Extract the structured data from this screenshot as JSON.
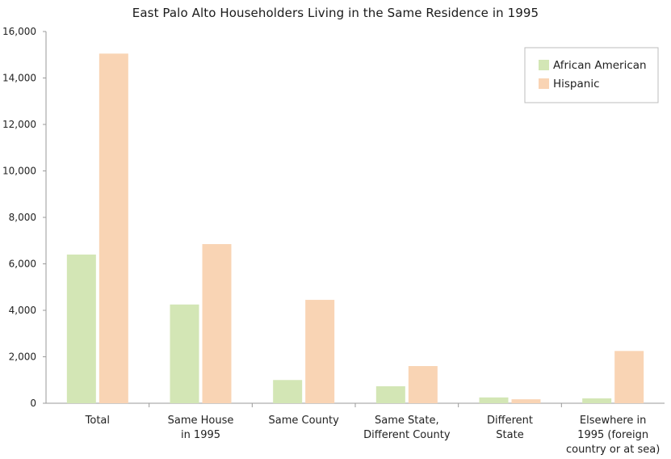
{
  "chart_data": {
    "type": "bar",
    "title": "East Palo Alto Householders Living in the Same Residence in 1995",
    "categories": [
      [
        "Total"
      ],
      [
        "Same House",
        "in 1995"
      ],
      [
        "Same County"
      ],
      [
        "Same State,",
        "Different County"
      ],
      [
        "Different",
        "State"
      ],
      [
        "Elsewhere in",
        "1995 (foreign",
        "country or at sea)"
      ]
    ],
    "series": [
      {
        "name": "African American",
        "color": "#d3e6b5",
        "values": [
          6400,
          4250,
          1000,
          730,
          250,
          210
        ]
      },
      {
        "name": "Hispanic",
        "color": "#f9d4b4",
        "values": [
          15050,
          6850,
          4450,
          1600,
          170,
          2250
        ]
      }
    ],
    "xlabel": "",
    "ylabel": "",
    "ylim": [
      0,
      16000
    ],
    "yticks": [
      "0",
      "2,000",
      "4,000",
      "6,000",
      "8,000",
      "10,000",
      "12,000",
      "14,000",
      "16,000"
    ],
    "ytick_values": [
      0,
      2000,
      4000,
      6000,
      8000,
      10000,
      12000,
      14000,
      16000
    ],
    "grid": false,
    "legend": "top-right"
  }
}
